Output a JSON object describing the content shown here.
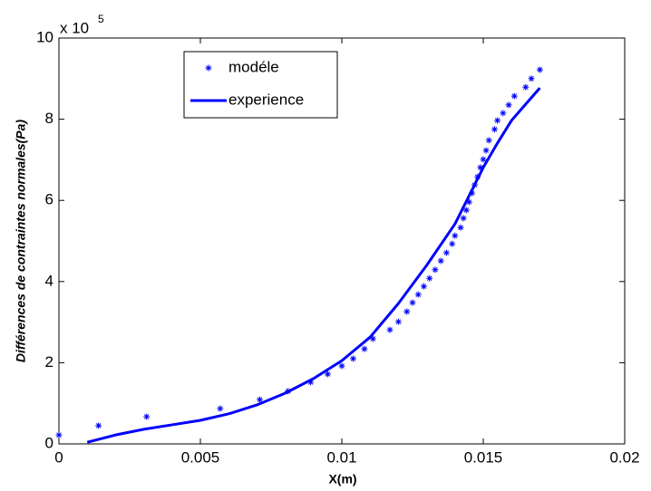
{
  "chart_data": {
    "type": "line",
    "xlabel": "X(m)",
    "ylabel": "Différences de contraintes normales(Pa)",
    "y_multiplier": {
      "base": "x 10",
      "exponent": "5"
    },
    "xlim": [
      0,
      0.02
    ],
    "xticks": [
      0,
      0.005,
      0.01,
      0.015,
      0.02
    ],
    "ylim": [
      0,
      10
    ],
    "yticks": [
      0,
      2,
      4,
      6,
      8,
      10
    ],
    "legend": "top-left",
    "series": [
      {
        "name": "modéle",
        "color": "#0000ff",
        "style": "*",
        "x": [
          0,
          0.0014,
          0.0031,
          0.0057,
          0.0071,
          0.0081,
          0.0089,
          0.0095,
          0.01,
          0.0104,
          0.0108,
          0.0111,
          0.0117,
          0.012,
          0.0123,
          0.0125,
          0.0127,
          0.0129,
          0.0131,
          0.0133,
          0.0135,
          0.0137,
          0.0139,
          0.014,
          0.0142,
          0.0143,
          0.0144,
          0.0145,
          0.0146,
          0.0147,
          0.0148,
          0.0149,
          0.015,
          0.0151,
          0.0152,
          0.0154,
          0.0155,
          0.0157,
          0.0159,
          0.0161,
          0.0165,
          0.0167,
          0.017
        ],
        "values": [
          0.22,
          0.45,
          0.67,
          0.87,
          1.09,
          1.3,
          1.52,
          1.72,
          1.92,
          2.1,
          2.34,
          2.59,
          2.81,
          3.01,
          3.26,
          3.48,
          3.68,
          3.88,
          4.08,
          4.29,
          4.51,
          4.71,
          4.93,
          5.13,
          5.33,
          5.56,
          5.76,
          5.96,
          6.18,
          6.38,
          6.58,
          6.81,
          7.01,
          7.23,
          7.48,
          7.75,
          7.97,
          8.15,
          8.35,
          8.57,
          8.79,
          9.0,
          9.22
        ]
      },
      {
        "name": "experience",
        "color": "#0000ff",
        "style": "-",
        "x": [
          0.001,
          0.002,
          0.003,
          0.004,
          0.005,
          0.006,
          0.007,
          0.008,
          0.009,
          0.01,
          0.011,
          0.012,
          0.013,
          0.014,
          0.015,
          0.0155,
          0.016,
          0.0165,
          0.017
        ],
        "values": [
          0.04,
          0.22,
          0.36,
          0.47,
          0.58,
          0.74,
          0.96,
          1.25,
          1.61,
          2.05,
          2.63,
          3.46,
          4.4,
          5.42,
          6.81,
          7.41,
          7.97,
          8.37,
          8.77
        ]
      }
    ]
  }
}
